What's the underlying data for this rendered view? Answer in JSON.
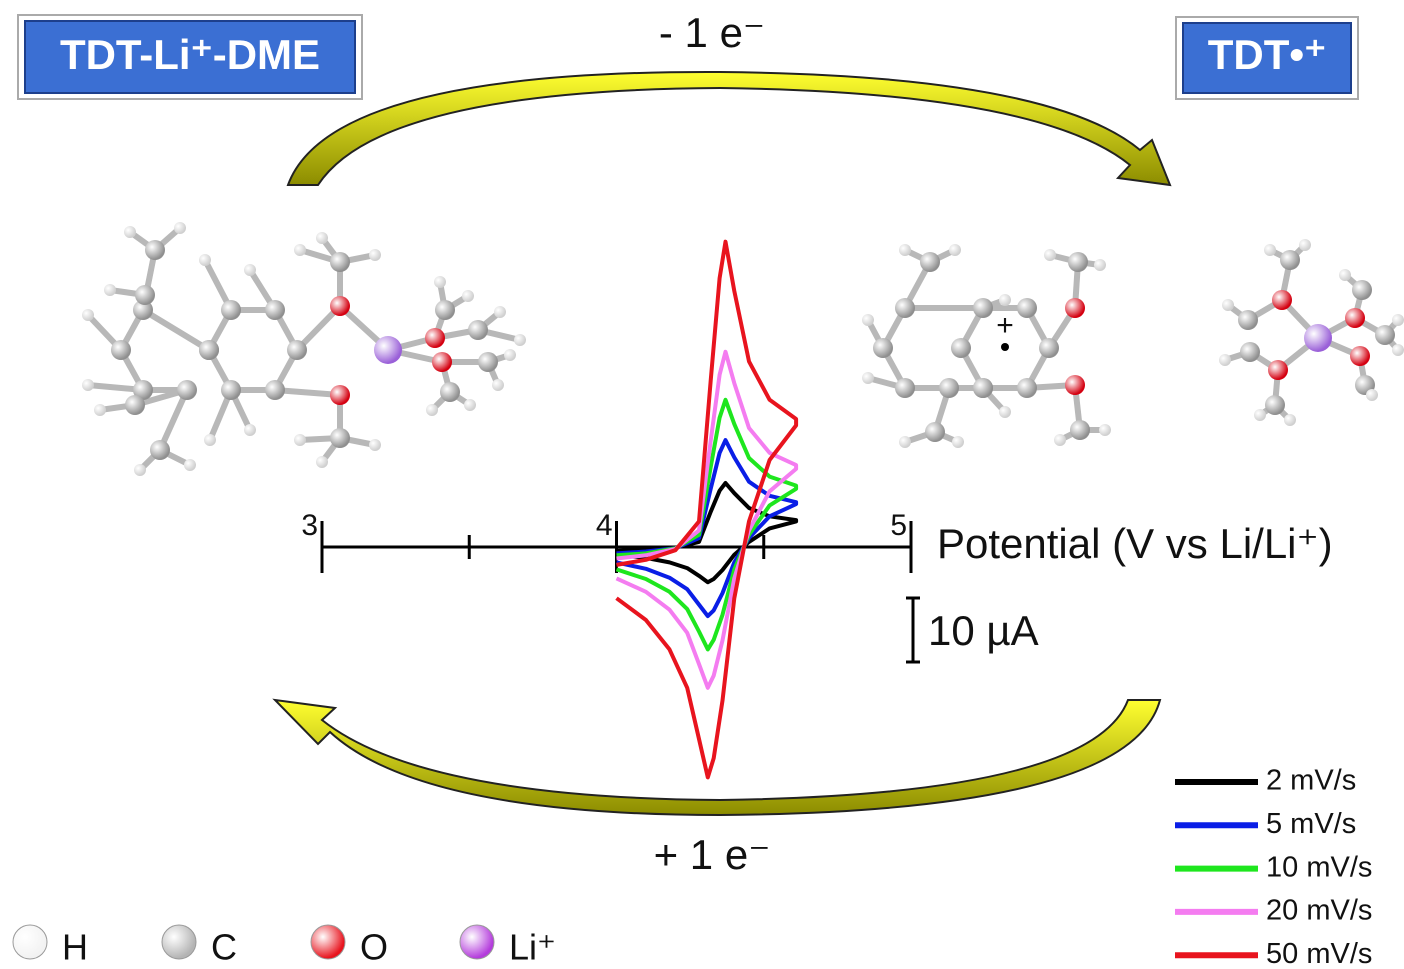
{
  "header": {
    "left_label": "TDT-Li⁺-DME",
    "right_label": "TDT•⁺"
  },
  "oxidation_label": "- 1 e⁻",
  "reduction_label": "+ 1 e⁻",
  "chart_data": {
    "type": "line",
    "xlabel": "Potential (V vs Li/Li⁺)",
    "x": [
      4.0,
      4.1,
      4.2,
      4.28,
      4.32,
      4.35,
      4.37,
      4.4,
      4.45,
      4.52,
      4.61,
      4.61,
      4.52,
      4.45,
      4.4,
      4.36,
      4.33,
      4.31,
      4.28,
      4.24,
      4.18,
      4.1,
      4.0
    ],
    "xlim": [
      3,
      5
    ],
    "xticks": [
      3,
      4,
      5
    ],
    "xminor_ticks": [
      3.5,
      4.5
    ],
    "scale_bar": {
      "value": 10,
      "label": "10 µA"
    },
    "series": [
      {
        "name": "2 mV/s",
        "color": "#000000",
        "values": [
          -0.6,
          -0.4,
          -0.1,
          0.8,
          5.5,
          8.8,
          10,
          8.4,
          6.1,
          4.8,
          4.2,
          4,
          2.9,
          0.8,
          -1.2,
          -3.6,
          -5,
          -5.5,
          -4.5,
          -3.3,
          -2.4,
          -1.7,
          -1.2
        ]
      },
      {
        "name": "5 mV/s",
        "color": "#0a1ee6",
        "values": [
          -1,
          -0.7,
          -0.2,
          1.4,
          9.1,
          14.7,
          16.7,
          14,
          10.2,
          8,
          7,
          6.7,
          4.8,
          1.4,
          -2.4,
          -7.2,
          -9.9,
          -10.8,
          -9,
          -6.6,
          -4.8,
          -3.4,
          -2.4
        ]
      },
      {
        "name": "10 mV/s",
        "color": "#1ee61e",
        "values": [
          -1.3,
          -1,
          -0.2,
          1.9,
          12.5,
          20.2,
          23,
          19.2,
          13.9,
          11,
          9.6,
          9.1,
          6.5,
          1.9,
          -3.5,
          -10.6,
          -14.5,
          -16,
          -13.2,
          -9.7,
          -7,
          -5,
          -3.5
        ]
      },
      {
        "name": "20 mV/s",
        "color": "#f47cf0",
        "values": [
          -1.8,
          -1.3,
          -0.3,
          2.6,
          16.6,
          26.9,
          30.5,
          25.6,
          18.6,
          14.7,
          12.8,
          12.2,
          8.7,
          2.6,
          -4.9,
          -14.6,
          -20.1,
          -22,
          -18.3,
          -13.4,
          -9.8,
          -7,
          -4.9
        ]
      },
      {
        "name": "50 mV/s",
        "color": "#e8141e",
        "values": [
          -2.8,
          -2,
          -0.5,
          4,
          26,
          42,
          47.7,
          40,
          29,
          23,
          20,
          19,
          13.6,
          4,
          -8,
          -24,
          -33,
          -36,
          -30,
          -22,
          -16,
          -11.4,
          -8
        ]
      }
    ]
  },
  "atom_legend": [
    {
      "label": "H",
      "color": "#f2f2f2"
    },
    {
      "label": "C",
      "color": "#b4b4b4"
    },
    {
      "label": "O",
      "color": "#e8141e"
    },
    {
      "label": "Li⁺",
      "color": "#b43cdc"
    }
  ]
}
